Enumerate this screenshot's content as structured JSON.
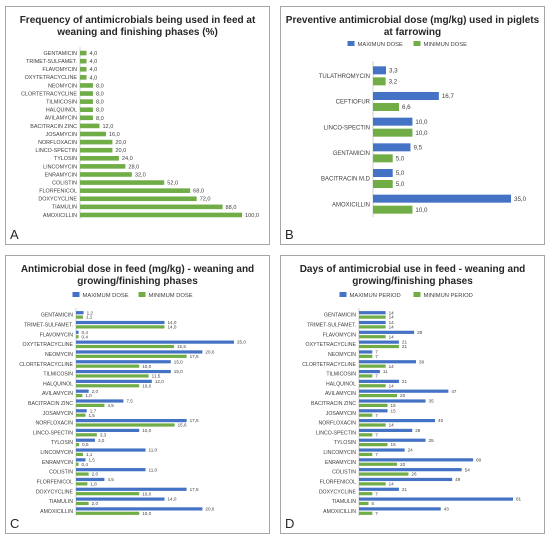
{
  "chart_data": [
    {
      "panel": "A",
      "type": "bar",
      "orientation": "horizontal",
      "title": "Frequency of antimicrobials being used in feed at weaning and finishing phases (%)",
      "categories": [
        "GENTAMICIN",
        "TRIMET-SULFAMET.",
        "FLAVOMYCIN",
        "OXYTETRACYCLINE",
        "NEOMYCIN",
        "CLORTETRACYCLINE",
        "TILMICOSIN",
        "HALQUINOL",
        "AVILAMYCIN",
        "BACITRACIN ZINC",
        "JOSAMYCIN",
        "NORFLOXACIN",
        "LINCO-SPECTIN",
        "TYLOSIN",
        "LINCOMYCIN",
        "ENRAMYCIN",
        "COLISTIN",
        "FLORFENICOL",
        "DOXYCYCLINE",
        "TIAMULIN",
        "AMOXICILLIN"
      ],
      "series": [
        {
          "values": [
            4,
            4,
            4,
            4,
            8,
            8,
            8,
            8,
            8,
            12,
            16,
            20,
            20,
            24,
            28,
            32,
            52,
            68,
            72,
            88,
            100
          ],
          "labels": [
            "4,0",
            "4,0",
            "4,0",
            "4,0",
            "8,0",
            "8,0",
            "8,0",
            "8,0",
            "8,0",
            "12,0",
            "16,0",
            "20,0",
            "20,0",
            "24,0",
            "28,0",
            "32,0",
            "52,0",
            "68,0",
            "72,0",
            "88,0",
            "100,0"
          ],
          "color": "#70ad47"
        }
      ],
      "xlim": [
        0,
        100
      ],
      "panel_label": "A"
    },
    {
      "panel": "B",
      "type": "bar",
      "orientation": "horizontal",
      "title": "Preventive antimicrobial dose (mg/kg) used in piglets at farrowing",
      "categories": [
        "TULATHROMYCIN",
        "CEFTIOFUR",
        "LINCO-SPECTIN",
        "GENTAMICIN",
        "BACITRACIN M.D",
        "AMOXICILLIN"
      ],
      "series": [
        {
          "name": "MAXIMUN DOSE",
          "color": "#4472c4",
          "values": [
            3.3,
            16.7,
            10,
            9.5,
            5,
            35
          ],
          "labels": [
            "3,3",
            "16,7",
            "10,0",
            "9,5",
            "5,0",
            "35,0"
          ]
        },
        {
          "name": "MINIMUN DOSE",
          "color": "#70ad47",
          "values": [
            3.2,
            6.6,
            10,
            5,
            5,
            10
          ],
          "labels": [
            "3,2",
            "6,6",
            "10,0",
            "5,0",
            "5,0",
            "10,0"
          ]
        }
      ],
      "xlim": [
        0,
        35
      ],
      "legend": "top",
      "panel_label": "B"
    },
    {
      "panel": "C",
      "type": "bar",
      "orientation": "horizontal",
      "title": "Antimicrobial dose in feed (mg/kg) - weaning and growing/finishing phases",
      "categories": [
        "GENTAMICIN",
        "TRIMET-SULFAMET.",
        "FLAVOMYCIN",
        "OXYTETRACYCLINE",
        "NEOMYCIN",
        "CLORTETRACYCLINE",
        "TILMICOSIN",
        "HALQUINOL",
        "AVILAMYCIN",
        "BACITRACIN ZINC",
        "JOSAMYCIN",
        "NORFLOXACIN",
        "LINCO-SPECTIN",
        "TYLOSIN",
        "LINCOMYCIN",
        "ENRAMYCIN",
        "COLISTIN",
        "FLORFENICOL",
        "DOXYCYCLINE",
        "TIAMULIN",
        "AMOXICILLIN"
      ],
      "series": [
        {
          "name": "MAXIMUM DOSE",
          "color": "#4472c4",
          "values": [
            1.2,
            14,
            0.4,
            25,
            20,
            15,
            15,
            12,
            2,
            7.5,
            1.7,
            17.5,
            10,
            3,
            11,
            1.5,
            11,
            4.5,
            17.5,
            14,
            20
          ],
          "labels": [
            "1,2",
            "14,0",
            "0,4",
            "25,0",
            "20,0",
            "15,0",
            "15,0",
            "12,0",
            "2,0",
            "7,5",
            "1,7",
            "17,5",
            "10,0",
            "3,0",
            "11,0",
            "1,5",
            "11,0",
            "4,5",
            "17,5",
            "14,0",
            "20,0"
          ]
        },
        {
          "name": "MINIMUM DOSE",
          "color": "#70ad47",
          "values": [
            1.1,
            14,
            0.4,
            15.5,
            17.5,
            10,
            11.5,
            10,
            1,
            4.5,
            1.5,
            15.6,
            3.3,
            0.5,
            1.1,
            0.4,
            2,
            1.8,
            10,
            2,
            10
          ],
          "labels": [
            "1,1",
            "14,0",
            "0,4",
            "15,5",
            "17,5",
            "10,0",
            "11,5",
            "10,0",
            "1,0",
            "4,5",
            "1,5",
            "15,6",
            "3,3",
            "0,5",
            "1,1",
            "0,4",
            "2,0",
            "1,8",
            "10,0",
            "2,0",
            "10,0"
          ]
        }
      ],
      "xlim": [
        0,
        25
      ],
      "legend": "top",
      "panel_label": "C"
    },
    {
      "panel": "D",
      "type": "bar",
      "orientation": "horizontal",
      "title": "Days of antimicrobial use in feed - weaning and growing/finishing phases",
      "categories": [
        "GENTAMICIN",
        "TRIMET-SULFAMET.",
        "FLAVOMYCIN",
        "OXYTETRACYCLINE",
        "NEOMYCIN",
        "CLORTETRACYCLINE",
        "TILMICOSIN",
        "HALQUINOL",
        "AVILAMYCIN",
        "BACITRACIN ZINC",
        "JOSAMYCIN",
        "NORFLOXACIN",
        "LINCO-SPECTIN",
        "TYLOSIN",
        "LINCOMYCIN",
        "ENRAMYCIN",
        "COLISTIN",
        "FLORFENICOL",
        "DOXYCYCLINE",
        "TIAMULIN",
        "AMOXICILLIN"
      ],
      "series": [
        {
          "name": "MAXIMUN PERIOD",
          "color": "#4472c4",
          "values": [
            14,
            14,
            29,
            21,
            7,
            30,
            11,
            21,
            47,
            35,
            15,
            40,
            28,
            35,
            24,
            60,
            54,
            49,
            21,
            81,
            43
          ],
          "labels": [
            "14",
            "14",
            "29",
            "21",
            "7",
            "30",
            "11",
            "21",
            "47",
            "35",
            "15",
            "40",
            "28",
            "35",
            "24",
            "60",
            "54",
            "49",
            "21",
            "81",
            "43"
          ]
        },
        {
          "name": "MINIMUN PERIOD",
          "color": "#70ad47",
          "values": [
            14,
            14,
            14,
            21,
            7,
            14,
            7,
            14,
            20,
            15,
            7,
            14,
            7,
            15,
            7,
            20,
            26,
            14,
            7,
            5,
            7
          ],
          "labels": [
            "14",
            "14",
            "14",
            "21",
            "7",
            "14",
            "7",
            "14",
            "20",
            "15",
            "7",
            "14",
            "7",
            "15",
            "7",
            "20",
            "26",
            "14",
            "7",
            "5",
            "7"
          ]
        }
      ],
      "xlim": [
        0,
        81
      ],
      "legend": "top",
      "panel_label": "D"
    }
  ]
}
